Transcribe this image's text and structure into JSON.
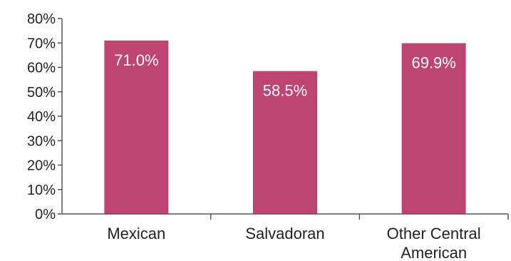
{
  "chart_data": {
    "type": "bar",
    "categories": [
      [
        "Mexican"
      ],
      [
        "Salvadoran"
      ],
      [
        "Other Central",
        "American"
      ]
    ],
    "values": [
      71.0,
      58.5,
      69.9
    ],
    "data_labels": [
      "71.0%",
      "58.5%",
      "69.9%"
    ],
    "ylim": [
      0,
      80
    ],
    "yticks": [
      0,
      10,
      20,
      30,
      40,
      50,
      60,
      70,
      80
    ],
    "ytick_labels": [
      "0%",
      "10%",
      "20%",
      "30%",
      "40%",
      "50%",
      "60%",
      "70%",
      "80%"
    ],
    "title": "",
    "xlabel": "",
    "ylabel": "",
    "grid": false,
    "legend": "none",
    "bar_color": "#BE4571",
    "axis_color": "#555555"
  }
}
